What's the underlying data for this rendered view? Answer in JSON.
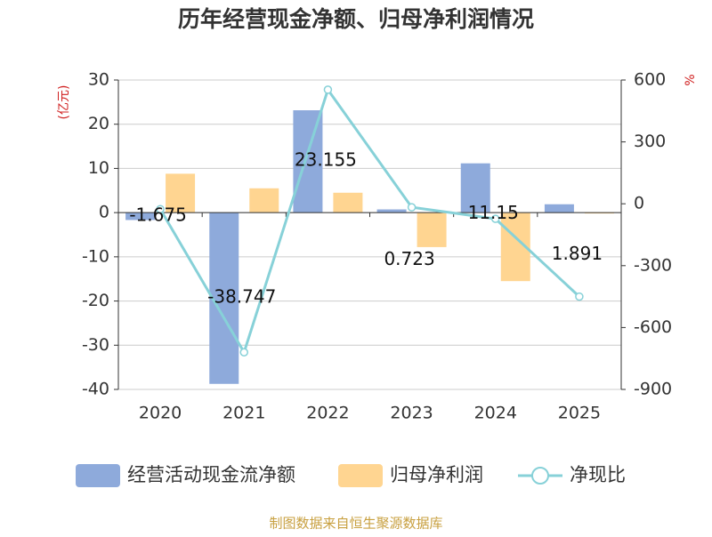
{
  "chart_data": {
    "type": "bar-line",
    "title": "历年经营现金净额、归母净利润情况",
    "y_label": "(亿元)",
    "y2_label": "%",
    "footer": "制图数据来自恒生聚源数据库",
    "categories": [
      "2020",
      "2021",
      "2022",
      "2023",
      "2024",
      "2025"
    ],
    "ylim": [
      -40,
      30
    ],
    "yticks": [
      -40,
      -30,
      -20,
      -10,
      0,
      10,
      20,
      30
    ],
    "y2lim": [
      -900,
      600
    ],
    "y2ticks": [
      -900,
      -600,
      -300,
      0,
      300,
      600
    ],
    "grid": true,
    "legend": "bottom",
    "series": [
      {
        "name": "经营活动现金流净额",
        "type": "bar",
        "color": "#8eaadb",
        "values": [
          -1.675,
          -38.747,
          23.155,
          0.723,
          11.15,
          1.891
        ],
        "data_labels": true
      },
      {
        "name": "归母净利润",
        "type": "bar",
        "color": "#ffd591",
        "values": [
          8.8,
          5.5,
          4.5,
          -7.8,
          -15.5,
          -0.2
        ]
      },
      {
        "name": "净现比",
        "type": "line",
        "axis": "y2",
        "color": "#87d1d8",
        "values": [
          -26,
          -720,
          553,
          -17,
          -73,
          -450
        ]
      }
    ]
  }
}
